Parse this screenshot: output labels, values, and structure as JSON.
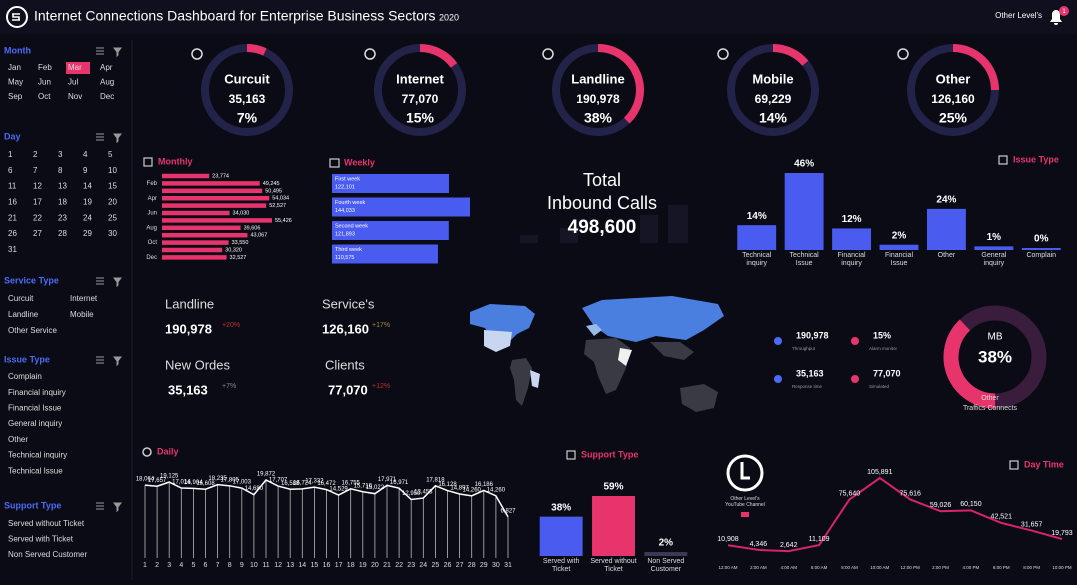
{
  "header": {
    "title": "Internet Connections Dashboard for Enterprise Business Sectors",
    "year": "2020",
    "user": "Other Level's",
    "badge": "1"
  },
  "slicers": [
    {
      "title": "Month",
      "items": [
        "Jan",
        "Feb",
        "Mar",
        "Apr",
        "May",
        "Jun",
        "Jul",
        "Aug",
        "Sep",
        "Oct",
        "Nov",
        "Dec"
      ],
      "selected": "Mar"
    },
    {
      "title": "Day",
      "items": [
        "1",
        "2",
        "3",
        "4",
        "5",
        "6",
        "7",
        "8",
        "9",
        "10",
        "11",
        "12",
        "13",
        "14",
        "15",
        "16",
        "17",
        "18",
        "19",
        "20",
        "21",
        "22",
        "23",
        "24",
        "25",
        "26",
        "27",
        "28",
        "29",
        "30",
        "31"
      ]
    },
    {
      "title": "Service Type",
      "items": [
        "Curcuit",
        "Internet",
        "Landline",
        "Mobile",
        "Other Service"
      ]
    },
    {
      "title": "Issue Type",
      "items": [
        "Complain",
        "Financial inquiry",
        "Financial Issue",
        "General inquiry",
        "Other",
        "Technical inquiry",
        "Technical Issue"
      ]
    },
    {
      "title": "Support Type",
      "items": [
        "Served without Ticket",
        "Served with Ticket",
        "Non Served Customer"
      ]
    }
  ],
  "chart_data": [
    {
      "type": "ring",
      "categories": [
        "Curcuit",
        "Internet",
        "Landline",
        "Mobile",
        "Other"
      ],
      "values": [
        35163,
        77070,
        190978,
        69229,
        126160
      ],
      "value_labels": [
        "35,163",
        "77,070",
        "190,978",
        "69,229",
        "126,160"
      ],
      "percents": [
        7,
        15,
        38,
        14,
        25
      ],
      "percent_labels": [
        "7%",
        "15%",
        "38%",
        "14%",
        "25%"
      ],
      "color": "#e8346c"
    },
    {
      "type": "hbar",
      "title": "Monthly",
      "categories": [
        null,
        "Feb",
        null,
        "Apr",
        null,
        "Jun",
        null,
        "Aug",
        null,
        "Oct",
        null,
        "Dec"
      ],
      "values": [
        23774,
        49245,
        50495,
        54034,
        52527,
        34030,
        55426,
        39606,
        43067,
        33550,
        30320,
        32527
      ],
      "value_labels": [
        "23,774",
        "49,245",
        "50,495",
        "54,034",
        "52,527",
        "34,030",
        "55,426",
        "39,606",
        "43,067",
        "33,550",
        "30,320",
        "32,527"
      ],
      "color": "#e8346c"
    },
    {
      "type": "hbar_inside",
      "title": "Weekly",
      "categories": [
        "First week",
        "Fourth week",
        "Second week",
        "Third week"
      ],
      "values": [
        122101,
        144033,
        121893,
        110575
      ],
      "value_labels": [
        "122,101",
        "144,033",
        "121,893",
        "110,575"
      ],
      "color": "#4a5cf0"
    },
    {
      "type": "bar",
      "title": "Issue Type",
      "categories": [
        "Technical inquiry",
        "Technical Issue",
        "Financial inquiry",
        "Financial Issue",
        "Other",
        "General inquiry",
        "Complain"
      ],
      "values": [
        14,
        46,
        12,
        2,
        24,
        1,
        0
      ],
      "value_labels": [
        "14%",
        "46%",
        "12%",
        "2%",
        "24%",
        "1%",
        "0%"
      ],
      "color": "#4a5cf0"
    },
    {
      "type": "line",
      "title": "Daily",
      "categories": [
        "1",
        "2",
        "3",
        "4",
        "5",
        "6",
        "7",
        "8",
        "9",
        "10",
        "11",
        "12",
        "13",
        "14",
        "15",
        "16",
        "17",
        "18",
        "19",
        "20",
        "21",
        "22",
        "23",
        "24",
        "25",
        "26",
        "27",
        "28",
        "29",
        "30",
        "31"
      ],
      "values": [
        18064,
        17657,
        19125,
        17014,
        16904,
        16608,
        18235,
        17805,
        17003,
        14680,
        19872,
        17707,
        16588,
        16724,
        17332,
        16472,
        14529,
        16755,
        15716,
        15022,
        17971,
        16971,
        12950,
        13455,
        17818,
        16128,
        14897,
        14260,
        16186,
        14260,
        6827
      ],
      "value_labels": [
        "18,064",
        "17,657",
        "19,125",
        "17,014",
        "16,904",
        "16,608",
        "18,235",
        "17,805",
        "17,003",
        "14,680",
        "19,872",
        "17,707",
        "16,588",
        "16,724",
        "17,332",
        "16,472",
        "14,529",
        "16,755",
        "15,716",
        "15,022",
        "17,971",
        "16,971",
        "12,950",
        "13,455",
        "17,818",
        "16,128",
        "14,897",
        "14,260",
        "16,186",
        "14,260",
        "6,827"
      ],
      "color": "#ffffff"
    },
    {
      "type": "bar",
      "title": "Support Type",
      "categories": [
        "Served with Ticket",
        "Served without Ticket",
        "Non Served Customer"
      ],
      "values": [
        38,
        59,
        2
      ],
      "value_labels": [
        "38%",
        "59%",
        "2%"
      ],
      "colors": [
        "#4a5cf0",
        "#e8346c",
        "#3a3a55"
      ]
    },
    {
      "type": "line",
      "title": "Day Time",
      "categories": [
        "12:00 AM",
        "2:00 AM",
        "4:00 AM",
        "6:00 AM",
        "8:00 AM",
        "10:00 AM",
        "12:00 PM",
        "2:00 PM",
        "4:00 PM",
        "6:00 PM",
        "8:00 PM",
        "10:00 PM"
      ],
      "values": [
        10908,
        4346,
        2642,
        11109,
        75640,
        105891,
        75616,
        59026,
        60150,
        42521,
        31657,
        19793
      ],
      "value_labels": [
        "10,908",
        "4,346",
        "2,642",
        "11,109",
        "75,640",
        "105,891",
        "75,616",
        "59,026",
        "60,150",
        "42,521",
        "31,657",
        "19,793"
      ],
      "color": "#d6246a"
    }
  ],
  "total_calls": {
    "title_lines": [
      "Total",
      "Inbound Calls"
    ],
    "value": "498,600"
  },
  "kpis": [
    {
      "label": "Landline",
      "value": "190,978",
      "change": "+20%"
    },
    {
      "label": "Service's",
      "value": "126,160",
      "change": "+17%"
    },
    {
      "label": "New Ordes",
      "value": "35,163",
      "change": "+7%"
    },
    {
      "label": "Clients",
      "value": "77,070",
      "change": "+12%"
    }
  ],
  "stats": [
    {
      "value": "190,978",
      "label": "Throughput"
    },
    {
      "value": "15%",
      "label": "Alarm monitor"
    },
    {
      "value": "35,163",
      "label": "Response time"
    },
    {
      "value": "77,070",
      "label": "Simulated"
    }
  ],
  "gauge": {
    "title": "MB",
    "value": 38,
    "value_label": "38%",
    "caption_lines": [
      "Other",
      "Traffics Connects"
    ]
  },
  "logo_caption": "Other Level's YouTube Channel"
}
